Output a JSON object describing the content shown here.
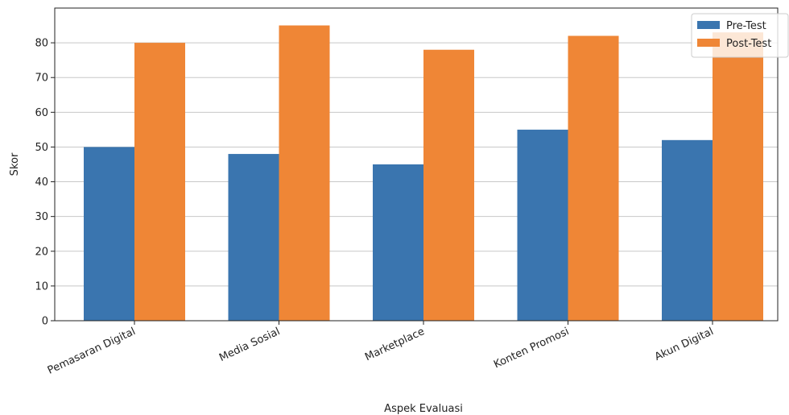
{
  "chart_data": {
    "type": "bar",
    "title": "",
    "xlabel": "Aspek Evaluasi",
    "ylabel": "Skor",
    "categories": [
      "Pemasaran Digital",
      "Media Sosial",
      "Marketplace",
      "Konten Promosi",
      "Akun Digital"
    ],
    "series": [
      {
        "name": "Pre-Test",
        "values": [
          50,
          48,
          45,
          55,
          52
        ],
        "color": "#3a75af"
      },
      {
        "name": "Post-Test",
        "values": [
          80,
          85,
          78,
          82,
          83
        ],
        "color": "#ef8636"
      }
    ],
    "ylim": [
      0,
      90
    ],
    "yticks": [
      0,
      10,
      20,
      30,
      40,
      50,
      60,
      70,
      80
    ],
    "grid": "horizontal",
    "legend_position": "top-right"
  }
}
